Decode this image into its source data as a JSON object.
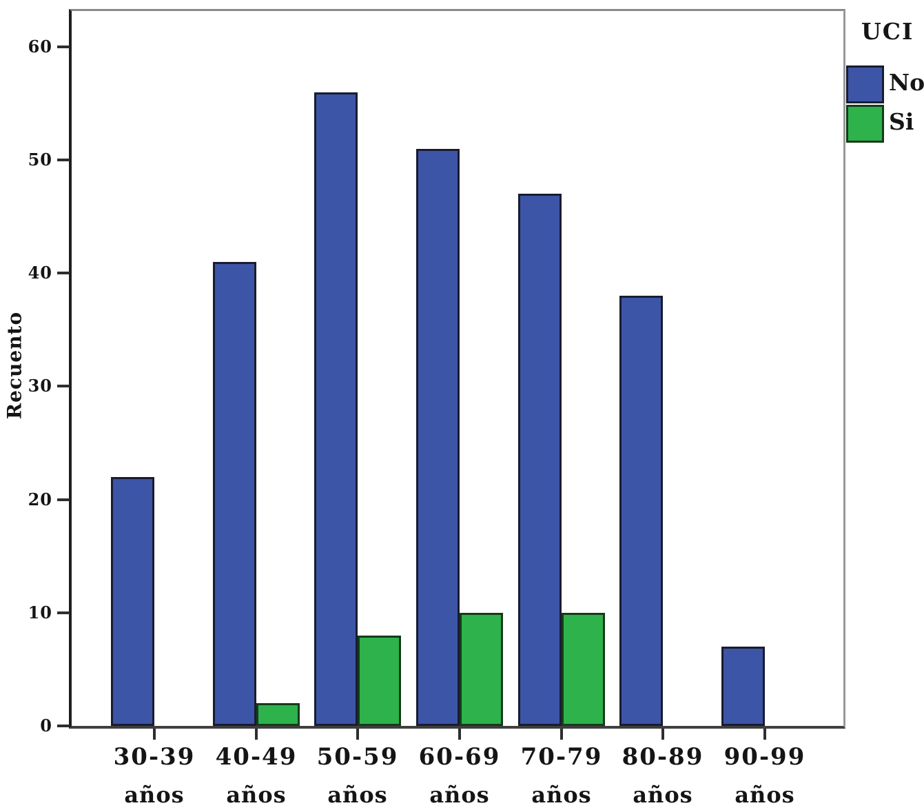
{
  "chart_data": {
    "type": "bar",
    "title": "",
    "xlabel": "",
    "ylabel": "Recuento",
    "categories": [
      "30-39 años",
      "40-49 años",
      "50-59 años",
      "60-69 años",
      "70-79 años",
      "80-89 años",
      "90-99 años"
    ],
    "category_top_lines": [
      "30-39",
      "40-49",
      "50-59",
      "60-69",
      "70-79",
      "80-89",
      "90-99"
    ],
    "category_bottom_line": "años",
    "series": [
      {
        "name": "No",
        "color": "#3c55a7",
        "border_color": "#191c30",
        "values": [
          22,
          41,
          56,
          51,
          47,
          38,
          7
        ]
      },
      {
        "name": "Si",
        "color": "#2db24c",
        "border_color": "#163a1a",
        "values": [
          0,
          2,
          8,
          10,
          10,
          0,
          0
        ]
      }
    ],
    "yticks": [
      0,
      10,
      20,
      30,
      40,
      50,
      60
    ],
    "ylim": [
      0,
      63
    ],
    "grid": false,
    "legend": {
      "title": "UCI",
      "position": "top-right-outside"
    }
  },
  "colors": {
    "frame_gray": "#8a8a8a",
    "axis_black": "#1e1e1e",
    "tick_color": "#2e2e2e",
    "text": "#151515",
    "background": "#ffffff"
  }
}
